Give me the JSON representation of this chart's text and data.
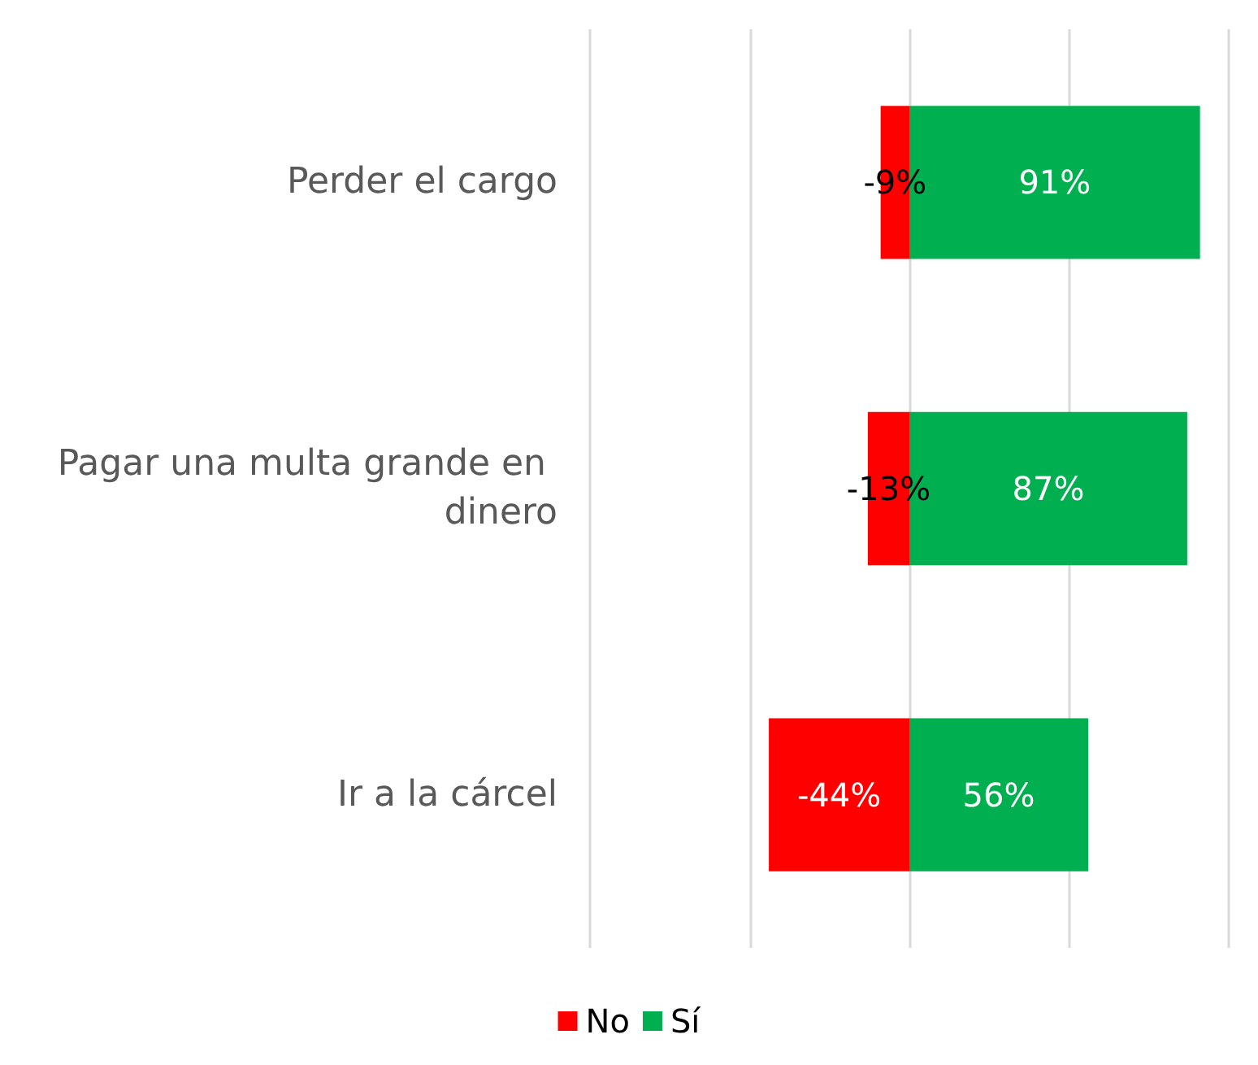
{
  "chart_data": {
    "type": "bar",
    "orientation": "horizontal",
    "stacked": true,
    "categories": [
      "Perder el cargo",
      "Pagar una multa grande en dinero",
      "Ir a la cárcel"
    ],
    "series": [
      {
        "name": "No",
        "color": "#ff0000",
        "values": [
          -9,
          -13,
          -44
        ],
        "value_labels": [
          "-9%",
          "-13%",
          "-44%"
        ]
      },
      {
        "name": "Sí",
        "color": "#00b050",
        "values": [
          91,
          87,
          56
        ],
        "value_labels": [
          "91%",
          "87%",
          "56%"
        ]
      }
    ],
    "xlim": [
      -100,
      100
    ],
    "tick_labels": "y",
    "grid": "x",
    "legend": "bottom"
  }
}
